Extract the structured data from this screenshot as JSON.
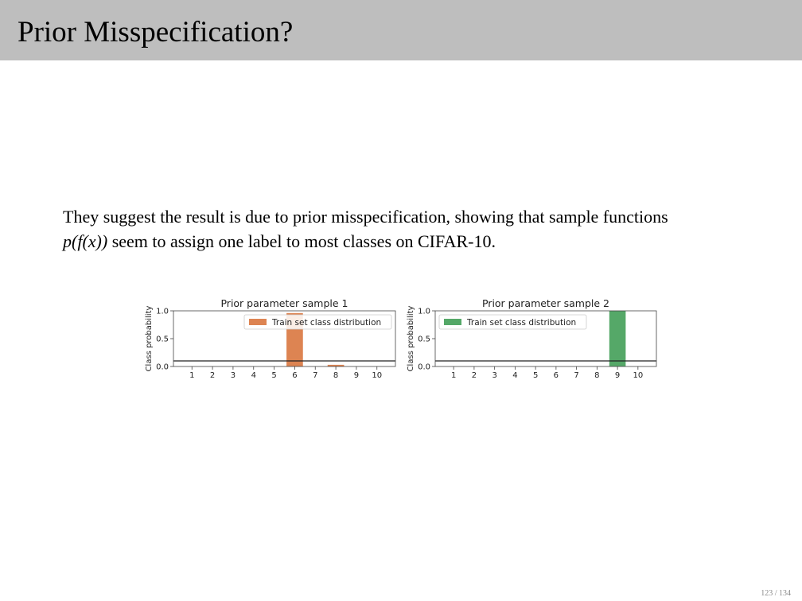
{
  "slide": {
    "title": "Prior Misspecification?",
    "text_part1": "They suggest the result is due to prior misspecification, showing that sample functions",
    "math": "p(f(x))",
    "text_part2": "seem to assign one label to most classes on CIFAR-10.",
    "page_number": "123 / 134"
  },
  "chart_data": [
    {
      "type": "bar",
      "title": "Prior parameter sample 1",
      "xlabel": "",
      "ylabel": "Class probability",
      "categories": [
        "1",
        "2",
        "3",
        "4",
        "5",
        "6",
        "7",
        "8",
        "9",
        "10"
      ],
      "series": [
        {
          "name": "Train set class distribution",
          "values": [
            0,
            0,
            0,
            0,
            0,
            0.96,
            0,
            0.03,
            0,
            0
          ],
          "color": "#dd8452"
        }
      ],
      "reference_line": 0.1,
      "ylim": [
        0,
        1.0
      ],
      "yticks": [
        0.0,
        0.5,
        1.0
      ],
      "legend": "top-right",
      "grid": false
    },
    {
      "type": "bar",
      "title": "Prior parameter sample 2",
      "xlabel": "",
      "ylabel": "Class probability",
      "categories": [
        "1",
        "2",
        "3",
        "4",
        "5",
        "6",
        "7",
        "8",
        "9",
        "10"
      ],
      "series": [
        {
          "name": "Train set class distribution",
          "values": [
            0,
            0,
            0,
            0,
            0,
            0,
            0,
            0,
            1.0,
            0
          ],
          "color": "#55a868"
        }
      ],
      "reference_line": 0.1,
      "ylim": [
        0,
        1.0
      ],
      "yticks": [
        0.0,
        0.5,
        1.0
      ],
      "legend": "top-left",
      "grid": false
    }
  ]
}
